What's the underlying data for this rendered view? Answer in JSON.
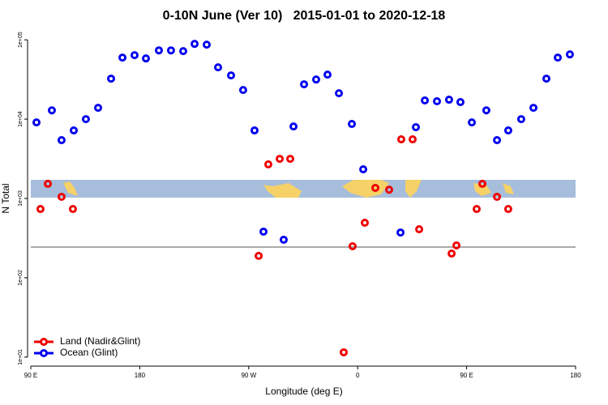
{
  "chart_data": {
    "type": "scatter",
    "title": "0-10N June (Ver 10)   2015-01-01 to 2020-12-18",
    "x_label": "Longitude (deg E)",
    "y_label": "N Total",
    "log_y": true,
    "xlim": [
      90,
      540
    ],
    "xticks": [
      {
        "value": 90,
        "label": "90 E"
      },
      {
        "value": 180,
        "label": "180"
      },
      {
        "value": 270,
        "label": "90 W"
      },
      {
        "value": 360,
        "label": "0"
      },
      {
        "value": 450,
        "label": "90 E"
      },
      {
        "value": 540,
        "label": "180"
      }
    ],
    "ylim": [
      7.7,
      130000
    ],
    "yticks": [
      {
        "value": 10,
        "label": "1e+01"
      },
      {
        "value": 100,
        "label": "1e+02"
      },
      {
        "value": 1000,
        "label": "1e+03"
      },
      {
        "value": 10000,
        "label": "1e+04"
      },
      {
        "value": 100000,
        "label": "1e+05"
      }
    ],
    "hline": 244,
    "legend": "bottom-left",
    "series": [
      {
        "name": "Land (Nadir&Glint)",
        "color": "#ee0000",
        "x": [
          98.0,
          104.1,
          115.4,
          124.8,
          278.2,
          286.2,
          295.6,
          304.3,
          348.5,
          355.8,
          365.9,
          374.6,
          386.0,
          396.0,
          405.4,
          410.8,
          437.6,
          441.6,
          458.3,
          463.0,
          475.1,
          484.4
        ],
        "values": [
          736,
          1530,
          1050,
          736,
          189,
          2690,
          3160,
          3160,
          11.5,
          250,
          494,
          1360,
          1290,
          5560,
          5560,
          409,
          202,
          256,
          736,
          1530,
          1050,
          736
        ]
      },
      {
        "name": "Ocean (Glint)",
        "color": "#0000ee",
        "x": [
          94.7,
          107.4,
          115.4,
          125.5,
          135.5,
          145.6,
          156.3,
          165.7,
          175.7,
          185.1,
          195.8,
          205.8,
          215.9,
          225.3,
          235.3,
          244.7,
          255.4,
          265.4,
          274.8,
          282.2,
          298.9,
          307.0,
          315.7,
          325.7,
          335.1,
          344.5,
          355.2,
          364.6,
          395.4,
          408.1,
          415.5,
          425.5,
          435.5,
          444.9,
          454.3,
          466.3,
          475.1,
          484.4,
          495.1,
          505.2,
          515.9,
          525.3,
          535.3
        ],
        "values": [
          9100,
          12900,
          5430,
          7200,
          10000,
          13900,
          32400,
          59700,
          64000,
          58200,
          73600,
          73600,
          72000,
          88900,
          86900,
          45000,
          35600,
          23300,
          7200,
          382,
          302,
          8090,
          27500,
          31600,
          36400,
          21200,
          8690,
          2330,
          372,
          7910,
          17200,
          16800,
          17600,
          16400,
          9100,
          12900,
          5430,
          7200,
          10000,
          13900,
          32400,
          59700,
          65500
        ]
      }
    ]
  }
}
